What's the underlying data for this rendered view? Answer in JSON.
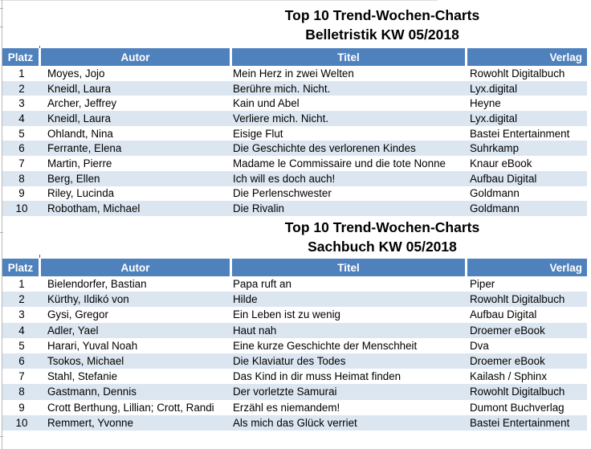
{
  "document": {
    "colors": {
      "header_bg": "#4f81bd",
      "header_text": "#ffffff",
      "band_bg": "#dce6f1",
      "body_text": "#000000"
    },
    "sections": [
      {
        "title_line1": "Top 10 Trend-Wochen-Charts",
        "title_line2": "Belletristik KW 05/2018",
        "columns": [
          "Platz",
          "Autor",
          "Titel",
          "Verlag"
        ],
        "rows": [
          [
            "1",
            "Moyes, Jojo",
            "Mein Herz in zwei Welten",
            "Rowohlt Digitalbuch"
          ],
          [
            "2",
            "Kneidl, Laura",
            "Berühre mich. Nicht.",
            "Lyx.digital"
          ],
          [
            "3",
            "Archer, Jeffrey",
            "Kain und Abel",
            "Heyne"
          ],
          [
            "4",
            "Kneidl, Laura",
            "Verliere mich. Nicht.",
            "Lyx.digital"
          ],
          [
            "5",
            "Ohlandt, Nina",
            "Eisige Flut",
            "Bastei Entertainment"
          ],
          [
            "6",
            "Ferrante, Elena",
            "Die Geschichte des verlorenen Kindes",
            "Suhrkamp"
          ],
          [
            "7",
            "Martin, Pierre",
            "Madame le Commissaire und die tote Nonne",
            "Knaur eBook"
          ],
          [
            "8",
            "Berg, Ellen",
            "Ich will es doch auch!",
            "Aufbau Digital"
          ],
          [
            "9",
            "Riley, Lucinda",
            "Die Perlenschwester",
            "Goldmann"
          ],
          [
            "10",
            "Robotham, Michael",
            "Die Rivalin",
            "Goldmann"
          ]
        ]
      },
      {
        "title_line1": "Top 10 Trend-Wochen-Charts",
        "title_line2": "Sachbuch KW 05/2018",
        "columns": [
          "Platz",
          "Autor",
          "Titel",
          "Verlag"
        ],
        "rows": [
          [
            "1",
            "Bielendorfer, Bastian",
            "Papa ruft an",
            "Piper"
          ],
          [
            "2",
            "Kürthy, Ildikó von",
            "Hilde",
            "Rowohlt Digitalbuch"
          ],
          [
            "3",
            "Gysi, Gregor",
            "Ein Leben ist zu wenig",
            "Aufbau Digital"
          ],
          [
            "4",
            "Adler, Yael",
            "Haut nah",
            "Droemer eBook"
          ],
          [
            "5",
            "Harari, Yuval Noah",
            "Eine kurze Geschichte der Menschheit",
            "Dva"
          ],
          [
            "6",
            "Tsokos, Michael",
            "Die Klaviatur des Todes",
            "Droemer eBook"
          ],
          [
            "7",
            "Stahl, Stefanie",
            "Das Kind in dir muss Heimat finden",
            "Kailash / Sphinx"
          ],
          [
            "8",
            "Gastmann, Dennis",
            "Der vorletzte Samurai",
            "Rowohlt Digitalbuch"
          ],
          [
            "9",
            "Crott Berthung, Lillian; Crott, Randi",
            "Erzähl es niemandem!",
            "Dumont Buchverlag"
          ],
          [
            "10",
            "Remmert, Yvonne",
            "Als mich das Glück verriet",
            "Bastei Entertainment"
          ]
        ]
      }
    ]
  }
}
